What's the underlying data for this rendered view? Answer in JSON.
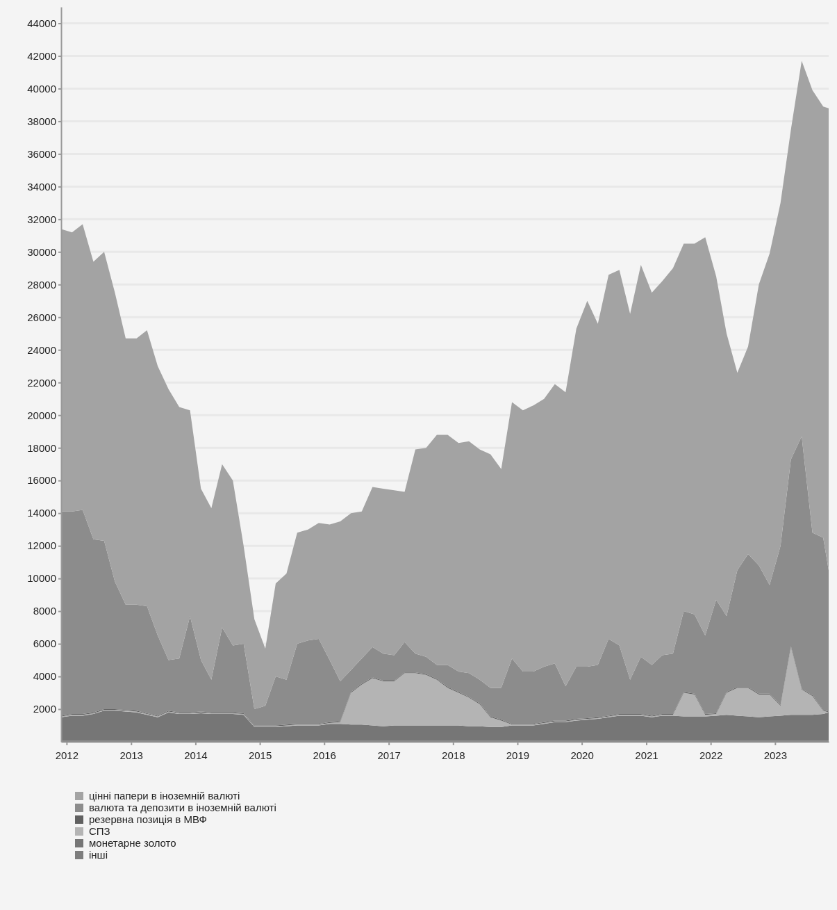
{
  "chart_data": {
    "type": "area",
    "stacked": true,
    "grid": "y",
    "legend": "bottom left",
    "x": [
      "2011-12",
      "2012-02",
      "2012-04",
      "2012-06",
      "2012-08",
      "2012-10",
      "2012-12",
      "2013-02",
      "2013-04",
      "2013-06",
      "2013-08",
      "2013-10",
      "2013-12",
      "2014-02",
      "2014-04",
      "2014-06",
      "2014-08",
      "2014-10",
      "2014-12",
      "2015-02",
      "2015-04",
      "2015-06",
      "2015-08",
      "2015-10",
      "2015-12",
      "2016-02",
      "2016-04",
      "2016-06",
      "2016-08",
      "2016-10",
      "2016-12",
      "2017-02",
      "2017-04",
      "2017-06",
      "2017-08",
      "2017-10",
      "2017-12",
      "2018-02",
      "2018-04",
      "2018-06",
      "2018-08",
      "2018-10",
      "2018-12",
      "2019-02",
      "2019-04",
      "2019-06",
      "2019-08",
      "2019-10",
      "2019-12",
      "2020-02",
      "2020-04",
      "2020-06",
      "2020-08",
      "2020-10",
      "2020-12",
      "2021-02",
      "2021-04",
      "2021-06",
      "2021-08",
      "2021-10",
      "2021-12",
      "2022-02",
      "2022-04",
      "2022-06",
      "2022-08",
      "2022-10",
      "2022-12",
      "2023-02",
      "2023-04",
      "2023-06",
      "2023-08",
      "2023-10",
      "2023-11"
    ],
    "xlim": [
      "2011-12",
      "2023-11"
    ],
    "xticks": [
      {
        "value": "2012-01",
        "label": "2012"
      },
      {
        "value": "2013-01",
        "label": "2013"
      },
      {
        "value": "2014-01",
        "label": "2014"
      },
      {
        "value": "2015-01",
        "label": "2015"
      },
      {
        "value": "2016-01",
        "label": "2016"
      },
      {
        "value": "2017-01",
        "label": "2017"
      },
      {
        "value": "2018-01",
        "label": "2018"
      },
      {
        "value": "2019-01",
        "label": "2019"
      },
      {
        "value": "2020-01",
        "label": "2020"
      },
      {
        "value": "2021-01",
        "label": "2021"
      },
      {
        "value": "2022-01",
        "label": "2022"
      },
      {
        "value": "2023-01",
        "label": "2023"
      }
    ],
    "ylim": [
      0,
      45000
    ],
    "yticks": [
      2000,
      4000,
      6000,
      8000,
      10000,
      12000,
      14000,
      16000,
      18000,
      20000,
      22000,
      24000,
      26000,
      28000,
      30000,
      32000,
      34000,
      36000,
      38000,
      40000,
      42000,
      44000
    ],
    "series": [
      {
        "name": "інші",
        "color": "#7d7d7d",
        "values": [
          50,
          50,
          50,
          50,
          50,
          50,
          50,
          50,
          50,
          50,
          50,
          50,
          50,
          50,
          50,
          50,
          50,
          50,
          50,
          50,
          50,
          50,
          50,
          50,
          50,
          50,
          50,
          50,
          50,
          50,
          50,
          50,
          50,
          50,
          50,
          50,
          50,
          50,
          50,
          50,
          50,
          50,
          50,
          50,
          50,
          50,
          50,
          50,
          50,
          50,
          50,
          50,
          50,
          50,
          50,
          50,
          50,
          50,
          50,
          50,
          50,
          50,
          50,
          50,
          50,
          50,
          50,
          50,
          50,
          50,
          50,
          50,
          50
        ]
      },
      {
        "name": "монетарне золото",
        "color": "#767676",
        "values": [
          1450,
          1550,
          1550,
          1650,
          1850,
          1850,
          1800,
          1750,
          1600,
          1450,
          1750,
          1650,
          1650,
          1700,
          1650,
          1650,
          1650,
          1600,
          850,
          850,
          850,
          900,
          950,
          950,
          950,
          1050,
          1050,
          1000,
          1000,
          950,
          900,
          950,
          950,
          950,
          950,
          950,
          950,
          950,
          900,
          900,
          850,
          850,
          950,
          950,
          950,
          1050,
          1150,
          1150,
          1250,
          1300,
          1350,
          1450,
          1550,
          1550,
          1550,
          1450,
          1550,
          1550,
          1500,
          1500,
          1500,
          1550,
          1600,
          1550,
          1500,
          1450,
          1500,
          1550,
          1600,
          1600,
          1600,
          1650,
          1750
        ]
      },
      {
        "name": "СПЗ",
        "color": "#b4b4b4",
        "values": [
          50,
          50,
          50,
          50,
          50,
          50,
          50,
          50,
          50,
          50,
          50,
          50,
          50,
          50,
          50,
          50,
          50,
          50,
          50,
          50,
          50,
          50,
          50,
          50,
          50,
          50,
          100,
          1950,
          2450,
          2900,
          2750,
          2700,
          3200,
          3200,
          3100,
          2800,
          2300,
          2000,
          1750,
          1350,
          600,
          400,
          50,
          50,
          50,
          50,
          50,
          50,
          50,
          50,
          50,
          50,
          50,
          50,
          50,
          50,
          50,
          50,
          1450,
          1350,
          100,
          100,
          1350,
          1700,
          1750,
          1400,
          1350,
          600,
          4150,
          1550,
          1150,
          200,
          0
        ]
      },
      {
        "name": "резервна позиція в МВФ",
        "color": "#606060",
        "values": [
          50,
          50,
          50,
          50,
          50,
          50,
          50,
          50,
          50,
          50,
          50,
          50,
          50,
          50,
          50,
          50,
          50,
          50,
          50,
          50,
          50,
          50,
          50,
          50,
          50,
          50,
          50,
          50,
          50,
          50,
          50,
          50,
          50,
          50,
          50,
          50,
          50,
          50,
          50,
          50,
          50,
          50,
          50,
          50,
          50,
          50,
          50,
          50,
          50,
          50,
          50,
          50,
          50,
          50,
          50,
          50,
          50,
          50,
          50,
          50,
          50,
          50,
          50,
          50,
          50,
          50,
          50,
          50,
          50,
          50,
          50,
          50,
          50
        ]
      },
      {
        "name": "валюта та депозити в іноземній валюті",
        "color": "#8c8c8c",
        "values": [
          12500,
          12400,
          12500,
          10600,
          10300,
          7800,
          6450,
          6500,
          6550,
          4900,
          3100,
          3300,
          5900,
          3150,
          2000,
          5200,
          4100,
          4250,
          1000,
          1200,
          3000,
          2750,
          4900,
          5100,
          5200,
          3800,
          2450,
          1350,
          1550,
          1850,
          1650,
          1550,
          1850,
          1150,
          1050,
          850,
          1350,
          1250,
          1450,
          1450,
          1750,
          1950,
          4000,
          3200,
          3200,
          3400,
          3500,
          2100,
          3200,
          3150,
          3200,
          4700,
          4200,
          2100,
          3500,
          3100,
          3600,
          3700,
          4950,
          4850,
          4800,
          6950,
          4650,
          7150,
          8150,
          7850,
          6650,
          9750,
          11450,
          15450,
          9950,
          10550,
          8650
        ]
      },
      {
        "name": "цінні папери в іноземній валюті",
        "color": "#a3a3a3",
        "values": [
          17300,
          17100,
          17500,
          17000,
          17700,
          17700,
          16300,
          16300,
          16900,
          16500,
          16600,
          15400,
          12600,
          10500,
          10500,
          10000,
          10100,
          6000,
          5500,
          3500,
          5700,
          6500,
          6800,
          6800,
          7100,
          8300,
          9800,
          9600,
          9000,
          9800,
          10100,
          10100,
          9200,
          12500,
          12800,
          14100,
          14100,
          14000,
          14200,
          14100,
          14300,
          13400,
          15700,
          16000,
          16300,
          16400,
          17100,
          18000,
          20700,
          22400,
          20900,
          22300,
          23000,
          22400,
          24000,
          22800,
          22900,
          23600,
          22500,
          22700,
          24400,
          19800,
          17300,
          12100,
          12700,
          17200,
          20300,
          21000,
          20200,
          23000,
          27100,
          26400,
          28300
        ]
      }
    ]
  }
}
